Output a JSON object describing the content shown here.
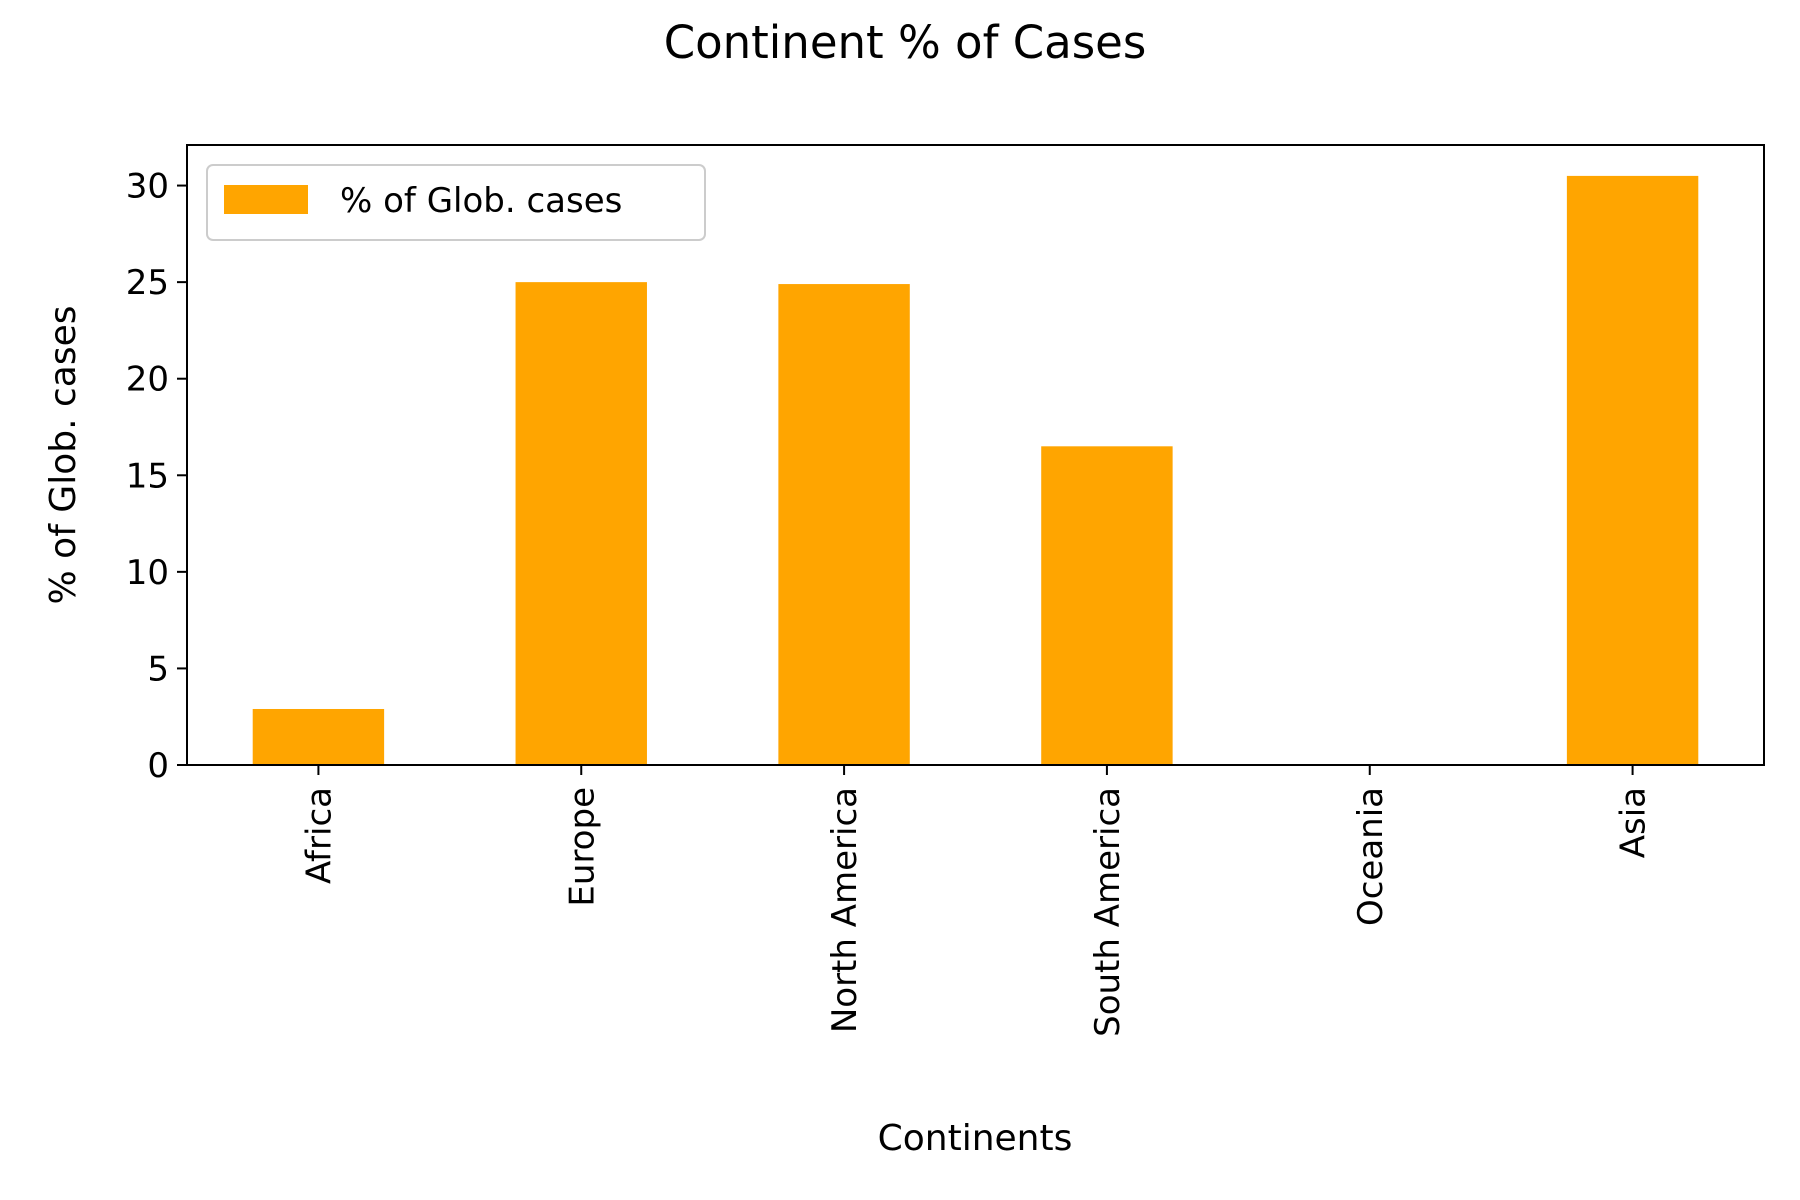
{
  "chart_data": {
    "type": "bar",
    "title": "Continent % of Cases",
    "xlabel": "Continents",
    "ylabel": "% of Glob. cases",
    "categories": [
      "Africa",
      "Europe",
      "North America",
      "South America",
      "Oceania",
      "Asia"
    ],
    "series": [
      {
        "name": "% of Glob. cases",
        "values": [
          2.9,
          25.0,
          24.9,
          16.5,
          0.0,
          30.5
        ],
        "color": "#ffa500"
      }
    ],
    "ylim": [
      0,
      32.1
    ],
    "yticks": [
      0,
      5,
      10,
      15,
      20,
      25,
      30
    ],
    "grid": false,
    "legend_position": "top-left"
  }
}
